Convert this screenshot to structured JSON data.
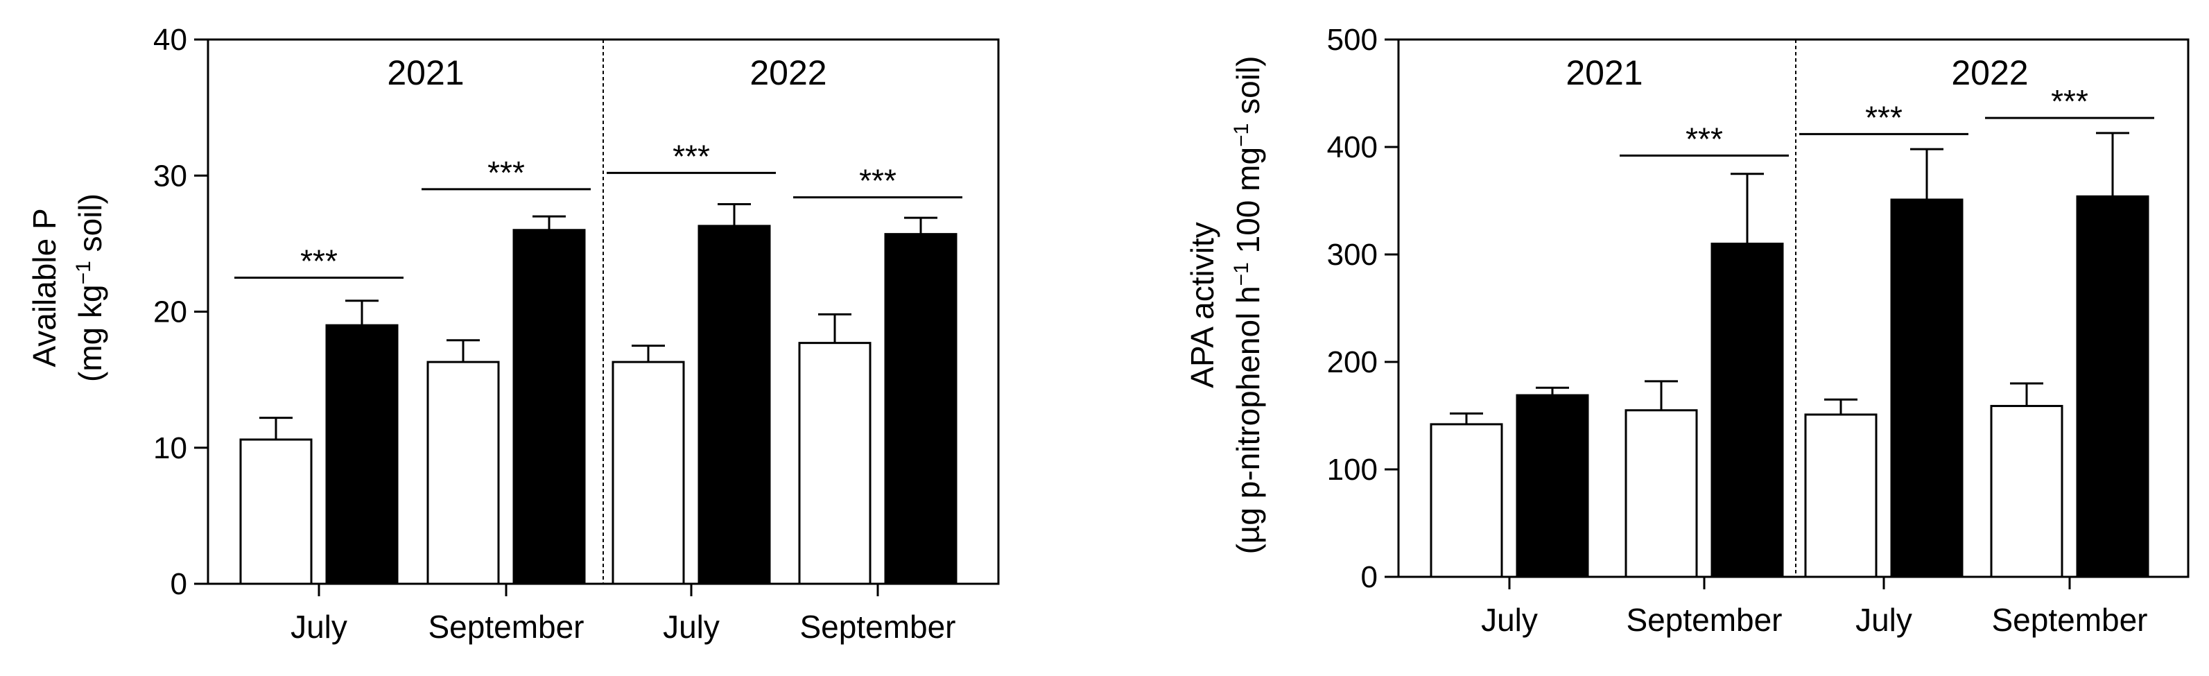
{
  "chart_data": [
    {
      "type": "bar",
      "categories": [
        "July",
        "September",
        "July",
        "September"
      ],
      "groups": [
        "2021",
        "2021",
        "2022",
        "2022"
      ],
      "group_labels": [
        "2021",
        "2022"
      ],
      "ylabel_line1": "Available P",
      "ylabel_line2_pre": "(mg kg",
      "ylabel_line2_sup": "−1",
      "ylabel_line2_post": " soil)",
      "ylim": [
        0,
        40
      ],
      "yticks": [
        0,
        10,
        20,
        30,
        40
      ],
      "series": [
        {
          "color": "#ffffff",
          "values": [
            10.6,
            16.3,
            16.3,
            17.7
          ],
          "errors": [
            1.6,
            1.6,
            1.2,
            2.1
          ]
        },
        {
          "color": "#000000",
          "values": [
            19.0,
            26.0,
            26.3,
            25.7
          ],
          "errors": [
            1.8,
            1.0,
            1.6,
            1.2
          ]
        }
      ],
      "significance": [
        {
          "category_index": 0,
          "label": "***",
          "y": 22.5
        },
        {
          "category_index": 1,
          "label": "***",
          "y": 29.0
        },
        {
          "category_index": 2,
          "label": "***",
          "y": 30.2
        },
        {
          "category_index": 3,
          "label": "***",
          "y": 28.4
        }
      ],
      "grid": false
    },
    {
      "type": "bar",
      "categories": [
        "July",
        "September",
        "July",
        "September"
      ],
      "groups": [
        "2021",
        "2021",
        "2022",
        "2022"
      ],
      "group_labels": [
        "2021",
        "2022"
      ],
      "ylabel_line1": "APA activity",
      "ylabel_line2_pre": "(µg p-nitrophenol h",
      "ylabel_line2_sup": "−1",
      "ylabel_line2_mid": " 100 mg",
      "ylabel_line2_sup2": "−1",
      "ylabel_line2_post": " soil)",
      "ylim": [
        0,
        500
      ],
      "yticks": [
        0,
        100,
        200,
        300,
        400,
        500
      ],
      "series": [
        {
          "color": "#ffffff",
          "values": [
            142,
            155,
            151,
            159
          ],
          "errors": [
            10,
            27,
            14,
            21
          ]
        },
        {
          "color": "#000000",
          "values": [
            169,
            310,
            351,
            354
          ],
          "errors": [
            7,
            65,
            47,
            59
          ]
        }
      ],
      "significance": [
        {
          "category_index": 1,
          "label": "***",
          "y": 392
        },
        {
          "category_index": 2,
          "label": "***",
          "y": 412
        },
        {
          "category_index": 3,
          "label": "***",
          "y": 427
        }
      ],
      "grid": false
    }
  ]
}
